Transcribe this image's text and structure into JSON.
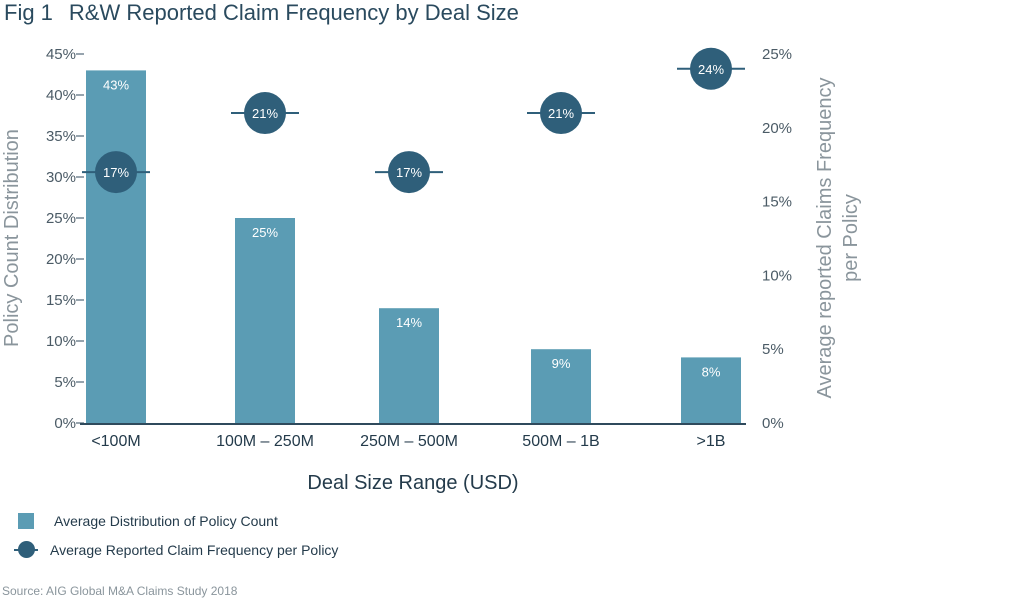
{
  "figure": {
    "number": "Fig 1",
    "title": "R&W Reported Claim Frequency by Deal Size",
    "source": "Source: AIG Global M&A Claims Study 2018"
  },
  "colors": {
    "bar": "#5b9cb4",
    "dot": "#2f5f7a",
    "axis": "#2f4a5c"
  },
  "legend": {
    "bar_label": "Average Distribution of Policy Count",
    "dot_label": "Average Reported Claim Frequency per Policy"
  },
  "chart_data": {
    "type": "bar",
    "title": "R&W Reported Claim Frequency by Deal Size",
    "xlabel": "Deal Size Range (USD)",
    "ylabel": "Policy Count Distribution",
    "y2label_line1": "Average reported Claims Frequency",
    "y2label_line2": "per Policy",
    "categories": [
      "<100M",
      "100M – 250M",
      "250M – 500M",
      "500M – 1B",
      ">1B"
    ],
    "series": [
      {
        "name": "Average Distribution of Policy Count",
        "type": "bar",
        "axis": "left",
        "values": [
          43,
          25,
          14,
          9,
          8
        ],
        "labels": [
          "43%",
          "25%",
          "14%",
          "9%",
          "8%"
        ]
      },
      {
        "name": "Average Reported Claim Frequency per Policy",
        "type": "dot",
        "axis": "right",
        "values": [
          17,
          21,
          17,
          21,
          24
        ],
        "labels": [
          "17%",
          "21%",
          "17%",
          "21%",
          "24%"
        ]
      }
    ],
    "ylim": [
      0,
      45
    ],
    "y2lim": [
      0,
      25
    ],
    "yticks": [
      "0%",
      "5%",
      "10%",
      "15%",
      "20%",
      "25%",
      "30%",
      "35%",
      "40%",
      "45%"
    ],
    "y2ticks": [
      "0%",
      "5%",
      "10%",
      "15%",
      "20%",
      "25%"
    ],
    "grid": false,
    "legend_position": "bottom-left"
  }
}
